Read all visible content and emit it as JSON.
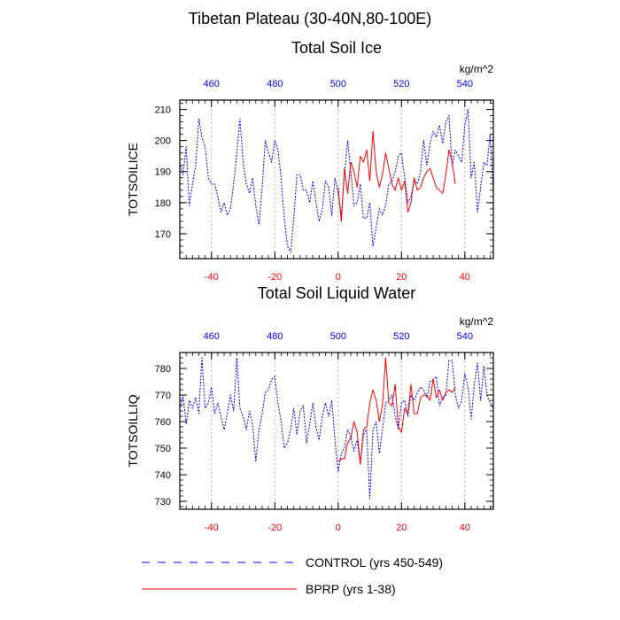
{
  "figure": {
    "main_title": "Tibetan Plateau (30-40N,80-100E)",
    "legend": [
      {
        "label": "CONTROL (yrs 450-549)",
        "color": "#0000ff",
        "dash": "dashed"
      },
      {
        "label": "BPRP (yrs 1-38)",
        "color": "#ff0000",
        "dash": "solid"
      }
    ],
    "colors": {
      "control": "#0000ff",
      "bprp": "#ff0000",
      "top_axis": "#0000ff",
      "bottom_axis": "#ff0000",
      "grid": "#999999"
    }
  },
  "chart_data": [
    {
      "type": "line",
      "title": "Total Soil Ice",
      "ylabel": "TOTSOILICE",
      "units": "kg/m^2",
      "xlim": [
        -50,
        49
      ],
      "ylim": [
        162,
        213
      ],
      "yticks": [
        170,
        180,
        190,
        200,
        210
      ],
      "xticks_bottom": [
        -40,
        -20,
        0,
        20,
        40
      ],
      "xticks_top": [
        460,
        480,
        500,
        520,
        540
      ],
      "top_axis_offset": 500,
      "grid_x": [
        -40,
        -20,
        0,
        20,
        40
      ],
      "series": [
        {
          "name": "CONTROL (yrs 450-549)",
          "color": "#0000ff",
          "dash": "dashed",
          "x": [
            -50,
            -49,
            -48,
            -47,
            -46,
            -45,
            -44,
            -43,
            -42,
            -41,
            -40,
            -39,
            -38,
            -37,
            -36,
            -35,
            -34,
            -33,
            -32,
            -31,
            -30,
            -29,
            -28,
            -27,
            -26,
            -25,
            -24,
            -23,
            -22,
            -21,
            -20,
            -19,
            -18,
            -17,
            -16,
            -15,
            -14,
            -13,
            -12,
            -11,
            -10,
            -9,
            -8,
            -7,
            -6,
            -5,
            -4,
            -3,
            -2,
            -1,
            0,
            1,
            2,
            3,
            4,
            5,
            6,
            7,
            8,
            9,
            10,
            11,
            12,
            13,
            14,
            15,
            16,
            17,
            18,
            19,
            20,
            21,
            22,
            23,
            24,
            25,
            26,
            27,
            28,
            29,
            30,
            31,
            32,
            33,
            34,
            35,
            36,
            37,
            38,
            39,
            40,
            41,
            42,
            43,
            44,
            45,
            46,
            47,
            48,
            49
          ],
          "values": [
            193,
            189,
            198,
            179,
            186,
            192,
            207,
            201,
            198,
            188,
            186,
            186,
            182,
            177,
            180,
            176,
            178,
            186,
            196,
            207,
            193,
            186,
            183,
            188,
            179,
            173,
            185,
            200,
            196,
            193,
            200,
            197,
            188,
            175,
            166,
            164,
            175,
            189,
            189,
            184,
            184,
            180,
            187,
            180,
            174,
            178,
            187,
            185,
            176,
            188,
            183,
            176,
            189,
            200,
            190,
            179,
            180,
            186,
            175,
            175,
            180,
            166,
            172,
            178,
            176,
            179,
            186,
            187,
            190,
            195,
            196,
            188,
            180,
            182,
            187,
            186,
            190,
            200,
            192,
            199,
            203,
            201,
            205,
            199,
            206,
            208,
            192,
            197,
            195,
            193,
            205,
            210,
            188,
            193,
            177,
            185,
            193,
            192,
            202,
            183
          ]
        },
        {
          "name": "BPRP (yrs 1-38)",
          "color": "#ff0000",
          "dash": "solid",
          "x": [
            0,
            1,
            2,
            3,
            4,
            5,
            6,
            7,
            8,
            9,
            10,
            11,
            12,
            13,
            14,
            15,
            16,
            17,
            18,
            19,
            20,
            21,
            22,
            23,
            24,
            25,
            26,
            27,
            28,
            29,
            30,
            31,
            32,
            33,
            34,
            35,
            36,
            37
          ],
          "values": [
            185,
            174,
            191,
            183,
            193,
            190,
            185,
            195,
            193,
            197,
            187,
            203,
            190,
            185,
            189,
            196,
            191,
            186,
            184,
            188,
            184,
            187,
            177,
            180,
            188,
            184,
            185,
            188,
            190,
            191,
            188,
            185,
            184,
            183,
            189,
            197,
            193,
            186
          ]
        }
      ]
    },
    {
      "type": "line",
      "title": "Total Soil Liquid Water",
      "ylabel": "TOTSOILLIQ",
      "units": "kg/m^2",
      "xlim": [
        -50,
        49
      ],
      "ylim": [
        727,
        786
      ],
      "yticks": [
        730,
        740,
        750,
        760,
        770,
        780
      ],
      "xticks_bottom": [
        -40,
        -20,
        0,
        20,
        40
      ],
      "xticks_top": [
        460,
        480,
        500,
        520,
        540
      ],
      "top_axis_offset": 500,
      "grid_x": [
        -40,
        -20,
        0,
        20,
        40
      ],
      "series": [
        {
          "name": "CONTROL (yrs 450-549)",
          "color": "#0000ff",
          "dash": "dashed",
          "x": [
            -50,
            -49,
            -48,
            -47,
            -46,
            -45,
            -44,
            -43,
            -42,
            -41,
            -40,
            -39,
            -38,
            -37,
            -36,
            -35,
            -34,
            -33,
            -32,
            -31,
            -30,
            -29,
            -28,
            -27,
            -26,
            -25,
            -24,
            -23,
            -22,
            -21,
            -20,
            -19,
            -18,
            -17,
            -16,
            -15,
            -14,
            -13,
            -12,
            -11,
            -10,
            -9,
            -8,
            -7,
            -6,
            -5,
            -4,
            -3,
            -2,
            -1,
            0,
            1,
            2,
            3,
            4,
            5,
            6,
            7,
            8,
            9,
            10,
            11,
            12,
            13,
            14,
            15,
            16,
            17,
            18,
            19,
            20,
            21,
            22,
            23,
            24,
            25,
            26,
            27,
            28,
            29,
            30,
            31,
            32,
            33,
            34,
            35,
            36,
            37,
            38,
            39,
            40,
            41,
            42,
            43,
            44,
            45,
            46,
            47,
            48,
            49
          ],
          "values": [
            765,
            770,
            759,
            768,
            765,
            769,
            763,
            784,
            765,
            767,
            773,
            763,
            767,
            762,
            757,
            763,
            770,
            764,
            784,
            765,
            762,
            757,
            764,
            759,
            745,
            757,
            763,
            771,
            772,
            776,
            777,
            767,
            760,
            750,
            752,
            757,
            765,
            755,
            764,
            766,
            752,
            759,
            767,
            758,
            753,
            762,
            767,
            762,
            768,
            753,
            741,
            748,
            750,
            757,
            754,
            749,
            753,
            744,
            755,
            757,
            731,
            757,
            760,
            748,
            757,
            767,
            768,
            770,
            762,
            757,
            767,
            768,
            762,
            770,
            768,
            771,
            773,
            772,
            769,
            775,
            776,
            777,
            766,
            769,
            770,
            783,
            783,
            770,
            765,
            768,
            778,
            773,
            761,
            774,
            782,
            768,
            781,
            770,
            767,
            765
          ]
        },
        {
          "name": "BPRP (yrs 1-38)",
          "color": "#ff0000",
          "dash": "solid",
          "x": [
            0,
            1,
            2,
            3,
            4,
            5,
            6,
            7,
            8,
            9,
            10,
            11,
            12,
            13,
            14,
            15,
            16,
            17,
            18,
            19,
            20,
            21,
            22,
            23,
            24,
            25,
            26,
            27,
            28,
            29,
            30,
            31,
            32,
            33,
            34,
            35,
            36,
            37
          ],
          "values": [
            745,
            746,
            746,
            752,
            754,
            760,
            756,
            744,
            757,
            758,
            767,
            772,
            768,
            760,
            766,
            784,
            767,
            766,
            774,
            758,
            756,
            765,
            763,
            774,
            763,
            763,
            769,
            770,
            770,
            768,
            776,
            769,
            772,
            768,
            771,
            772,
            771,
            773
          ]
        }
      ]
    }
  ]
}
